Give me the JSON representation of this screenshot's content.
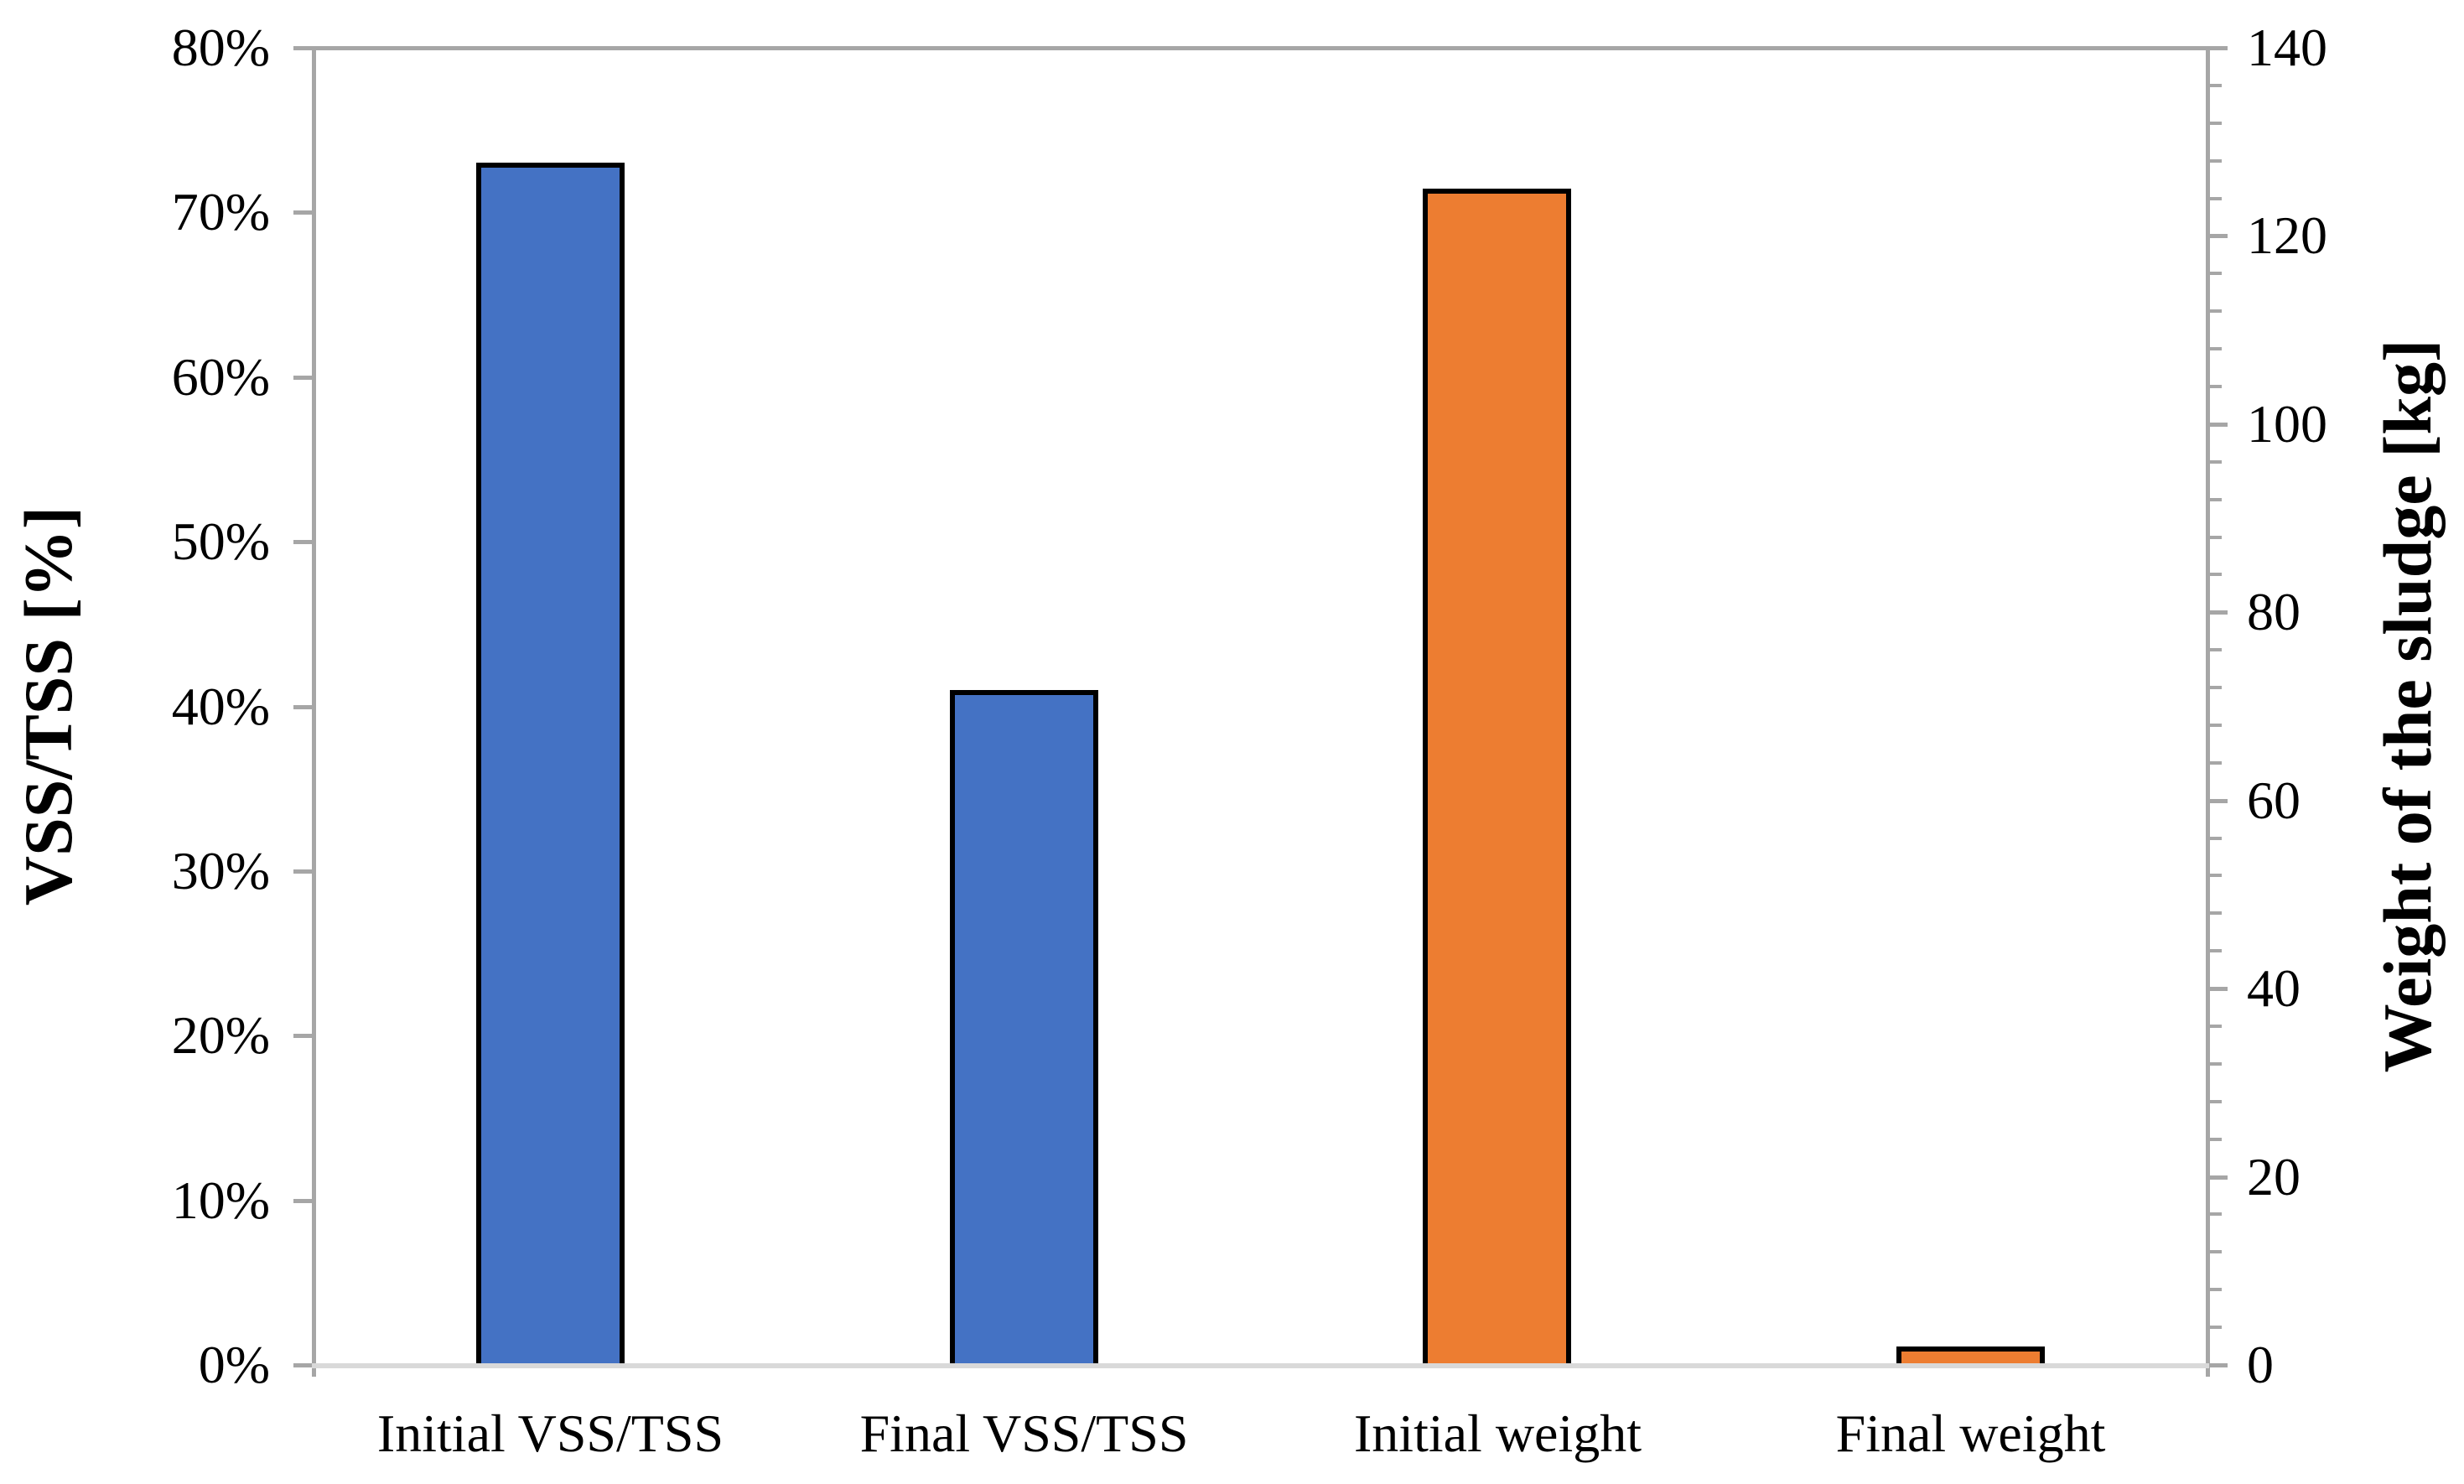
{
  "chart_data": {
    "type": "bar",
    "title": "",
    "categories": [
      "Initial VSS/TSS",
      "Final VSS/TSS",
      "Initial weight",
      "Final weight"
    ],
    "series": [
      {
        "name": "VSS/TSS",
        "axis": "left",
        "unit": "%",
        "color": "#4472C4",
        "values": [
          73,
          41,
          null,
          null
        ]
      },
      {
        "name": "Weight of the sludge",
        "axis": "right",
        "unit": "kg",
        "color": "#ED7D31",
        "values": [
          null,
          null,
          125,
          2
        ]
      }
    ],
    "axes": {
      "left": {
        "label": "VSS/TSS [%]",
        "min": 0,
        "max": 80,
        "major_step": 10,
        "tick_labels": [
          "0%",
          "10%",
          "20%",
          "30%",
          "40%",
          "50%",
          "60%",
          "70%",
          "80%"
        ]
      },
      "right": {
        "label": "Weight of the sludge [kg]",
        "min": 0,
        "max": 140,
        "major_step": 20,
        "minor_step": 4,
        "tick_labels": [
          "0",
          "20",
          "40",
          "60",
          "80",
          "100",
          "120",
          "140"
        ]
      }
    },
    "grid": false,
    "legend": false,
    "colors": {
      "axis_line": "#A6A6A6",
      "baseline": "#D9D9D9",
      "bar_border": "#000000",
      "background": "#FFFFFF"
    }
  }
}
